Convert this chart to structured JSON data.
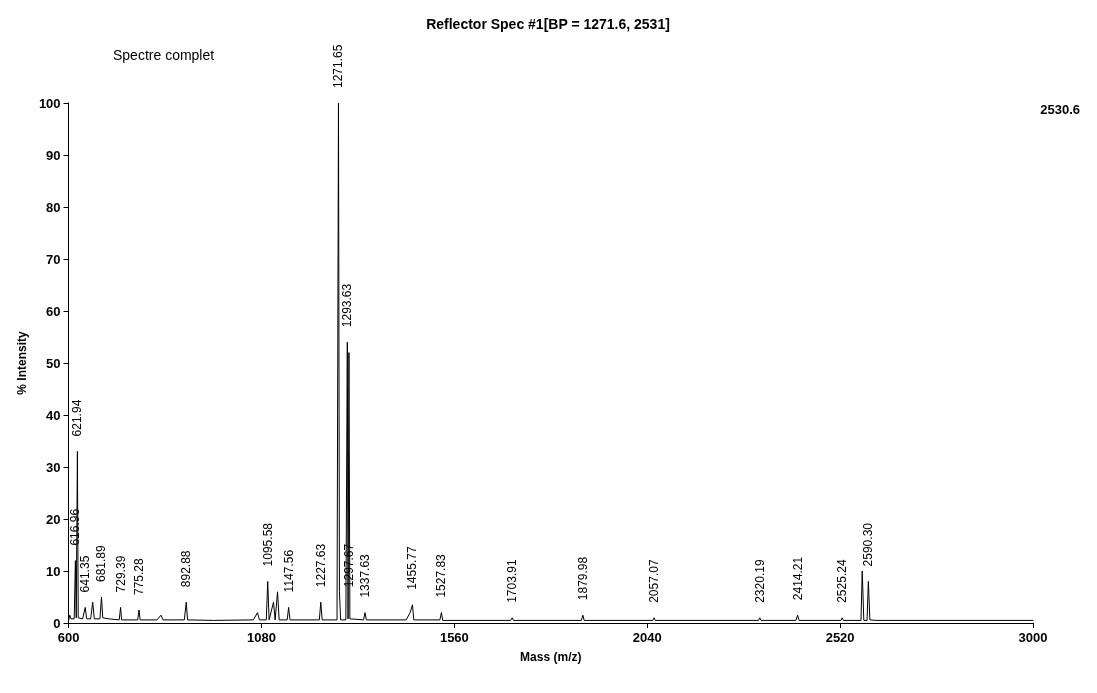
{
  "chart_data": {
    "type": "line",
    "title": "Reflector Spec #1[BP = 1271.6, 2531]",
    "xlabel": "Mass (m/z)",
    "ylabel": "% Intensity",
    "x": [
      600,
      603,
      606,
      614,
      616.96,
      619,
      621.94,
      624,
      635,
      641.35,
      645,
      655,
      660,
      664,
      678,
      681.89,
      685,
      700,
      726,
      729.39,
      732,
      772,
      775.28,
      778,
      820,
      830,
      835,
      888,
      892.88,
      896,
      960,
      1060,
      1070,
      1075,
      1092,
      1095.58,
      1099,
      1110,
      1114,
      1120,
      1124,
      1144,
      1147.56,
      1151,
      1224,
      1227.63,
      1231,
      1268,
      1271.65,
      1274,
      1277,
      1290,
      1293.63,
      1295.5,
      1297.67,
      1300,
      1334,
      1337.63,
      1341,
      1440,
      1450,
      1455.77,
      1459,
      1524,
      1527.83,
      1531,
      1700,
      1703.91,
      1707,
      1876,
      1879.98,
      1883,
      2054,
      2057.07,
      2060,
      2317,
      2320.19,
      2323,
      2410,
      2414.21,
      2418,
      2522,
      2525.24,
      2528,
      2572,
      2575,
      2579,
      2587,
      2590.3,
      2594,
      2610,
      3000
    ],
    "series": [
      {
        "color": "#000000",
        "values": [
          0.5,
          1.5,
          0.8,
          0.8,
          12,
          1,
          33,
          1,
          0.8,
          3,
          0.8,
          0.8,
          4,
          0.8,
          0.8,
          5,
          1,
          0.8,
          0.6,
          3,
          0.6,
          0.6,
          2.5,
          0.6,
          0.6,
          1.5,
          0.6,
          0.6,
          4,
          0.6,
          0.5,
          0.6,
          2,
          0.6,
          0.6,
          8,
          0.6,
          4,
          0.6,
          6,
          0.6,
          0.6,
          3,
          0.6,
          0.6,
          4,
          0.6,
          0.6,
          100,
          6,
          0.6,
          0.6,
          54,
          0.8,
          52,
          0.8,
          0.6,
          2,
          0.6,
          0.6,
          2,
          3.5,
          0.6,
          0.6,
          2,
          0.5,
          0.5,
          1,
          0.5,
          0.5,
          1.5,
          0.5,
          0.5,
          1,
          0.5,
          0.5,
          1,
          0.5,
          0.5,
          1.5,
          0.5,
          0.5,
          1,
          0.5,
          0.5,
          10,
          0.5,
          0.5,
          8,
          0.6,
          0.5,
          0.5
        ]
      }
    ],
    "xlim": [
      600,
      3000
    ],
    "xticks": [
      600,
      1080,
      1560,
      2040,
      2520,
      3000
    ],
    "ylim": [
      0,
      100
    ],
    "yticks": [
      0,
      10,
      20,
      30,
      40,
      50,
      60,
      70,
      80,
      90,
      100
    ],
    "grid": false,
    "marker": "none",
    "line_style": "solid",
    "annotations": [
      "Spectre complet",
      "2530.6",
      {
        "text": "621.94",
        "x": 621.94,
        "y": 33
      },
      {
        "text": "616.96",
        "x": 616.96,
        "y": 12
      },
      {
        "text": "641.35",
        "x": 641.35,
        "y": 3
      },
      {
        "text": "681.89",
        "x": 681.89,
        "y": 5
      },
      {
        "text": "729.39",
        "x": 729.39,
        "y": 3
      },
      {
        "text": "775.28",
        "x": 775.28,
        "y": 2.5
      },
      {
        "text": "892.88",
        "x": 892.88,
        "y": 4
      },
      {
        "text": "1095.58",
        "x": 1095.58,
        "y": 8
      },
      {
        "text": "1147.56",
        "x": 1147.56,
        "y": 3
      },
      {
        "text": "1227.63",
        "x": 1227.63,
        "y": 4
      },
      {
        "text": "1271.65",
        "x": 1271.65,
        "y": 100
      },
      {
        "text": "1293.63",
        "x": 1293.63,
        "y": 54
      },
      {
        "text": "1297.67",
        "x": 1297.67,
        "y": 4
      },
      {
        "text": "1337.63",
        "x": 1337.63,
        "y": 2
      },
      {
        "text": "1455.77",
        "x": 1455.77,
        "y": 3.5
      },
      {
        "text": "1527.83",
        "x": 1527.83,
        "y": 2
      },
      {
        "text": "1703.91",
        "x": 1703.91,
        "y": 1
      },
      {
        "text": "1879.98",
        "x": 1879.98,
        "y": 1.5
      },
      {
        "text": "2057.07",
        "x": 2057.07,
        "y": 1
      },
      {
        "text": "2320.19",
        "x": 2320.19,
        "y": 1
      },
      {
        "text": "2414.21",
        "x": 2414.21,
        "y": 1.5
      },
      {
        "text": "2525.24",
        "x": 2525.24,
        "y": 1
      },
      {
        "text": "2590.30",
        "x": 2590.3,
        "y": 8
      }
    ]
  }
}
